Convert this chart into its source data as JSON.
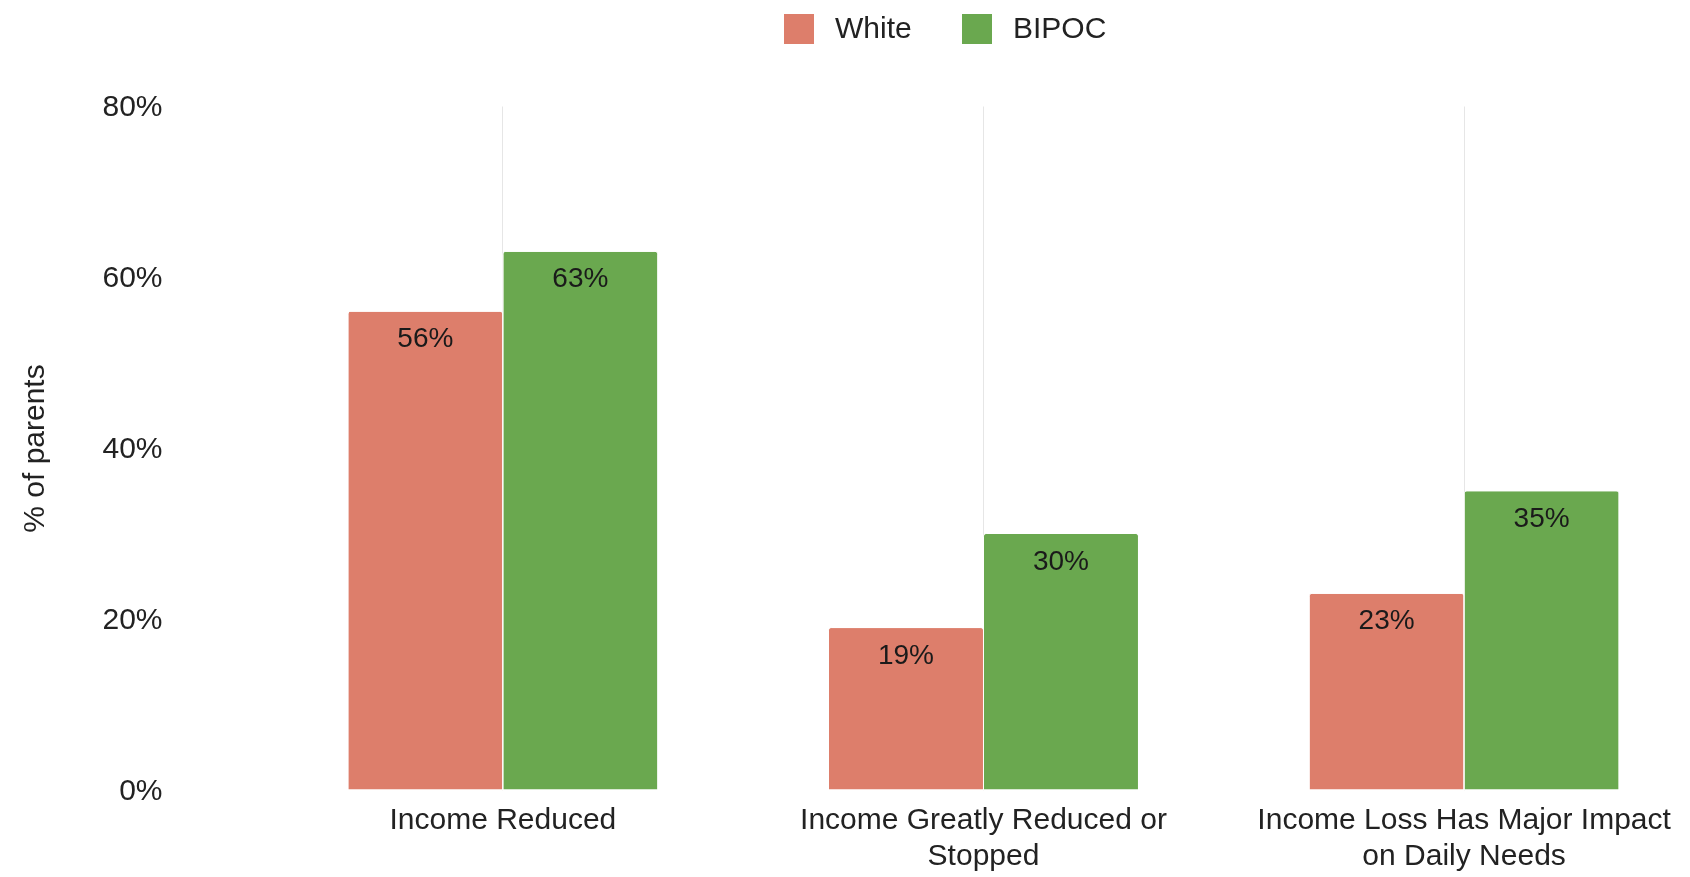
{
  "chart_data": {
    "type": "bar",
    "ylabel": "% of parents",
    "categories": [
      "Income Reduced",
      "Income Greatly Reduced or Stopped",
      "Income Loss Has Major Impact on Daily Needs"
    ],
    "series": [
      {
        "name": "White",
        "color": "#dd7e6b",
        "values": [
          56,
          19,
          23
        ],
        "value_labels": [
          "56%",
          "19%",
          "23%"
        ]
      },
      {
        "name": "BIPOC",
        "color": "#6aa84f",
        "values": [
          63,
          30,
          35
        ],
        "value_labels": [
          "63%",
          "30%",
          "35%"
        ]
      }
    ],
    "ylim": [
      0,
      80
    ],
    "yticks": [
      {
        "value": 0,
        "label": "0%"
      },
      {
        "value": 20,
        "label": "20%"
      },
      {
        "value": 40,
        "label": "40%"
      },
      {
        "value": 60,
        "label": "60%"
      },
      {
        "value": 80,
        "label": "80%"
      }
    ],
    "grid": "x",
    "legend": "top"
  }
}
